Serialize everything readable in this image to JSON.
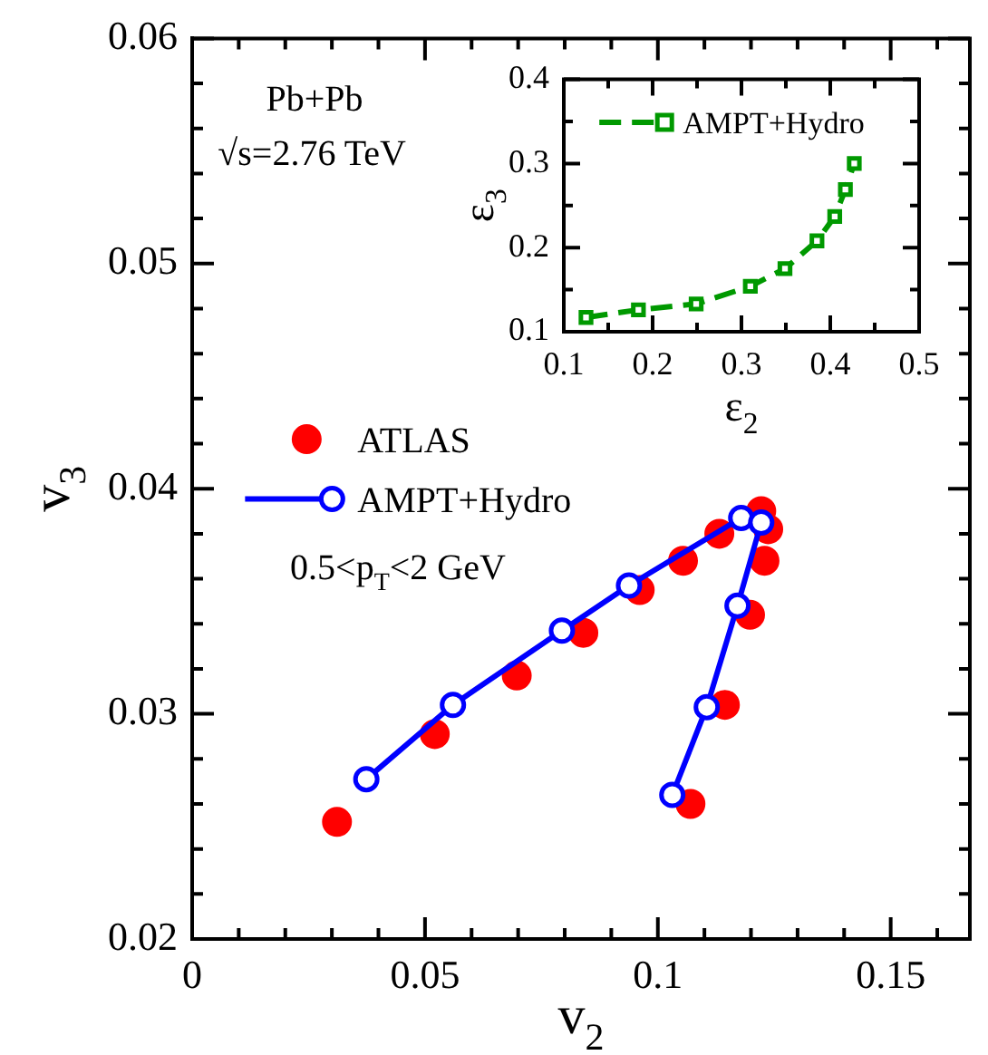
{
  "chart_data": [
    {
      "type": "scatter",
      "xlabel": "v$_{2}$",
      "ylabel": "v$_{3}$",
      "xlim": [
        0,
        0.167
      ],
      "ylim": [
        0.02,
        0.06
      ],
      "xticks": [
        0,
        {
          "value": 0.01,
          "label": null
        },
        {
          "value": 0.02,
          "label": null
        },
        {
          "value": 0.03,
          "label": null
        },
        {
          "value": 0.04,
          "label": null
        },
        0.05,
        {
          "value": 0.06,
          "label": null
        },
        {
          "value": 0.07,
          "label": null
        },
        {
          "value": 0.08,
          "label": null
        },
        {
          "value": 0.09,
          "label": null
        },
        0.1,
        {
          "value": 0.11,
          "label": null
        },
        {
          "value": 0.12,
          "label": null
        },
        {
          "value": 0.13,
          "label": null
        },
        {
          "value": 0.14,
          "label": null
        },
        0.15,
        {
          "value": 0.16,
          "label": null
        }
      ],
      "yticks": [
        0.02,
        {
          "value": 0.022,
          "label": null
        },
        {
          "value": 0.024,
          "label": null
        },
        {
          "value": 0.026,
          "label": null
        },
        {
          "value": 0.028,
          "label": null
        },
        0.03,
        {
          "value": 0.032,
          "label": null
        },
        {
          "value": 0.034,
          "label": null
        },
        {
          "value": 0.036,
          "label": null
        },
        {
          "value": 0.038,
          "label": null
        },
        0.04,
        {
          "value": 0.042,
          "label": null
        },
        {
          "value": 0.044,
          "label": null
        },
        {
          "value": 0.046,
          "label": null
        },
        {
          "value": 0.048,
          "label": null
        },
        0.05,
        {
          "value": 0.052,
          "label": null
        },
        {
          "value": 0.054,
          "label": null
        },
        {
          "value": 0.056,
          "label": null
        },
        {
          "value": 0.058,
          "label": null
        },
        0.06
      ],
      "grid": false,
      "legend": "left",
      "annotations": [
        "Pb+Pb",
        "√s=2.76 TeV",
        "0.5<p$_{T}$<2 GeV"
      ],
      "series": [
        {
          "name": "ATLAS",
          "marker": "circle",
          "color": "#ff0000",
          "x": [
            0.0311,
            0.0521,
            0.0697,
            0.084,
            0.0961,
            0.1054,
            0.1132,
            0.1222,
            0.1237,
            0.1229,
            0.1198,
            0.1144,
            0.107
          ],
          "values": [
            0.0252,
            0.0291,
            0.0317,
            0.0336,
            0.0355,
            0.0368,
            0.038,
            0.039,
            0.0382,
            0.0368,
            0.0344,
            0.0304,
            0.026
          ]
        },
        {
          "name": "AMPT+Hydro",
          "type": "line",
          "marker": "circle",
          "line_style": "solid",
          "color": "#0000ff",
          "x": [
            0.0374,
            0.056,
            0.0794,
            0.0938,
            0.1179,
            0.1222,
            0.1171,
            0.1105,
            0.1031
          ],
          "values": [
            0.0271,
            0.0304,
            0.0337,
            0.0357,
            0.0387,
            0.0385,
            0.0348,
            0.0303,
            0.0264
          ]
        }
      ]
    },
    {
      "type": "line",
      "xlabel": "ε$_{2}$",
      "ylabel": "ε$_{3}$",
      "xlim": [
        0.1,
        0.5
      ],
      "ylim": [
        0.1,
        0.4
      ],
      "xticks": [
        0.1,
        {
          "value": 0.15,
          "label": null
        },
        0.2,
        {
          "value": 0.25,
          "label": null
        },
        0.3,
        {
          "value": 0.35,
          "label": null
        },
        0.4,
        {
          "value": 0.45,
          "label": null
        },
        0.5
      ],
      "yticks": [
        0.1,
        {
          "value": 0.15,
          "label": null
        },
        0.2,
        {
          "value": 0.25,
          "label": null
        },
        0.3,
        {
          "value": 0.35,
          "label": null
        },
        0.4
      ],
      "grid": false,
      "legend": "top right",
      "series": [
        {
          "name": "AMPT+Hydro",
          "marker": "square",
          "line_style": "dashed",
          "color": "#009900",
          "x": [
            0.125,
            0.184,
            0.249,
            0.31,
            0.349,
            0.385,
            0.405,
            0.417,
            0.427
          ],
          "values": [
            0.117,
            0.126,
            0.133,
            0.154,
            0.175,
            0.208,
            0.237,
            0.269,
            0.3
          ]
        }
      ]
    }
  ]
}
